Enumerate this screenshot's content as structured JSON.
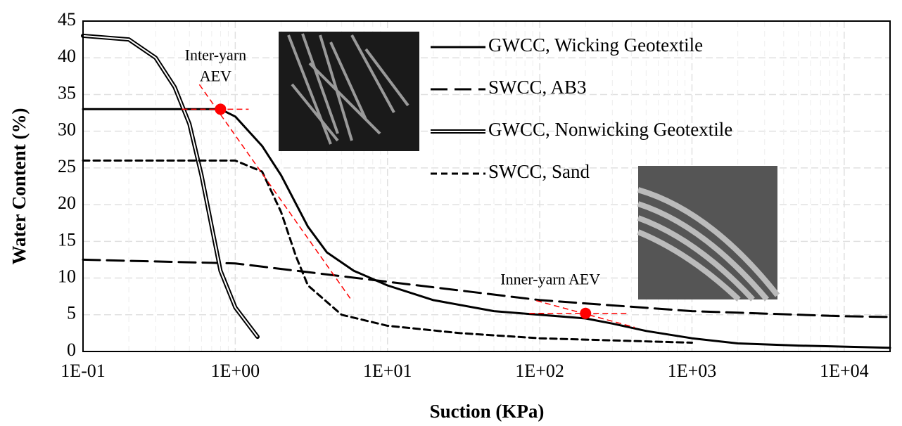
{
  "chart_data": {
    "type": "line",
    "x_label": "Suction (KPa)",
    "y_label": "Water Content (%)",
    "xscale": "log",
    "grid": true,
    "legend_position": "top-right",
    "xlim": [
      0.1,
      20000
    ],
    "ylim": [
      0,
      45
    ],
    "xticks": [
      {
        "value": 0.1,
        "label": "1E-01"
      },
      {
        "value": 1,
        "label": "1E+00"
      },
      {
        "value": 10,
        "label": "1E+01"
      },
      {
        "value": 100,
        "label": "1E+02"
      },
      {
        "value": 1000,
        "label": "1E+03"
      },
      {
        "value": 10000,
        "label": "1E+04"
      }
    ],
    "yticks": [
      0,
      5,
      10,
      15,
      20,
      25,
      30,
      35,
      40,
      45
    ],
    "series": [
      {
        "name": "GWCC, Wicking Geotextile",
        "color": "#000000",
        "style": "solid",
        "x": [
          0.1,
          0.5,
          0.8,
          1.0,
          1.5,
          2,
          3,
          4,
          6,
          10,
          20,
          50,
          100,
          200,
          300,
          500,
          1000,
          2000,
          5000,
          20000
        ],
        "values": [
          33,
          33,
          33,
          32,
          28,
          24,
          17,
          13.5,
          11,
          9,
          7,
          5.5,
          5,
          4.5,
          3.8,
          2.8,
          1.8,
          1.1,
          0.8,
          0.5
        ]
      },
      {
        "name": "SWCC, AB3",
        "color": "#000000",
        "style": "dashed",
        "x": [
          0.1,
          1,
          10,
          100,
          1000,
          10000,
          20000
        ],
        "values": [
          12.5,
          12,
          9.5,
          7,
          5.5,
          4.8,
          4.7
        ]
      },
      {
        "name": "GWCC, Nonwicking Geotextile",
        "color": "#000000",
        "style": "double",
        "x": [
          0.1,
          0.2,
          0.3,
          0.4,
          0.5,
          0.6,
          0.7,
          0.8,
          1.0,
          1.4
        ],
        "values": [
          43,
          42.5,
          40,
          36,
          31,
          24,
          17,
          11,
          6,
          2
        ]
      },
      {
        "name": "SWCC, Sand",
        "color": "#000000",
        "style": "dotted",
        "x": [
          0.1,
          1,
          1.5,
          2,
          2.5,
          3,
          5,
          10,
          30,
          100,
          1000
        ],
        "values": [
          26,
          26,
          24.5,
          19,
          13,
          9,
          5,
          3.5,
          2.5,
          1.8,
          1.2
        ]
      }
    ],
    "annotations": [
      {
        "text": "Inter-yarn AEV",
        "x": 0.8,
        "y": 33,
        "color": "#ff0000"
      },
      {
        "text": "Inner-yarn AEV",
        "x": 200,
        "y": 5.2,
        "color": "#ff0000"
      }
    ]
  }
}
